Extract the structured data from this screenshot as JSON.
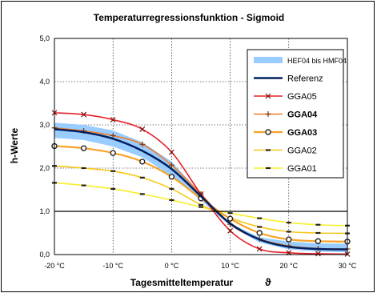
{
  "chart_data": {
    "type": "line",
    "title": "Temperaturregressionsfunktion - Sigmoid",
    "xlabel": "Tagesmitteltemperatur",
    "xlabel_symbol": "ϑ",
    "ylabel": "h-Werte",
    "xlim": [
      -20,
      30
    ],
    "ylim": [
      0,
      5
    ],
    "grid": true,
    "legend_position": "top-right",
    "x_ticks": [
      -20,
      -10,
      0,
      10,
      20,
      30
    ],
    "x_tick_labels": [
      "-20 °C",
      "-10 °C",
      "0 °C",
      "10 °C",
      "20 °C",
      "30 °C"
    ],
    "y_ticks": [
      0,
      1,
      2,
      3,
      4,
      5
    ],
    "y_tick_labels": [
      "0,0",
      "1,0",
      "2,0",
      "3,0",
      "4,0",
      "5,0"
    ],
    "band": {
      "name": "HEF04 bis HMF04",
      "color": "#99ccff",
      "x": [
        -20,
        -15,
        -10,
        -5,
        0,
        5,
        10,
        15,
        20,
        25,
        30
      ],
      "upper": [
        3.05,
        3.0,
        2.87,
        2.6,
        2.15,
        1.4,
        0.72,
        0.4,
        0.3,
        0.26,
        0.25
      ],
      "lower": [
        2.7,
        2.65,
        2.5,
        2.25,
        1.82,
        1.25,
        0.66,
        0.28,
        0.12,
        0.07,
        0.05
      ]
    },
    "series": [
      {
        "name": "Referenz",
        "color": "#002060",
        "width": 2.5,
        "marker": "none",
        "bold": false,
        "x": [
          -20,
          -15,
          -10,
          -5,
          0,
          5,
          10,
          15,
          20,
          25,
          30
        ],
        "y": [
          2.9,
          2.83,
          2.68,
          2.4,
          1.98,
          1.35,
          0.72,
          0.35,
          0.18,
          0.13,
          0.12
        ]
      },
      {
        "name": "GGA05",
        "color": "#e8202a",
        "width": 1.6,
        "marker": "x",
        "bold": false,
        "x": [
          -20,
          -15,
          -10,
          -5,
          0,
          5,
          10,
          15,
          20,
          25,
          30
        ],
        "y": [
          3.28,
          3.24,
          3.12,
          2.9,
          2.37,
          1.4,
          0.55,
          0.13,
          0.04,
          0.02,
          0.01
        ]
      },
      {
        "name": "GGA04",
        "color": "#f07d2a",
        "width": 1.6,
        "marker": "+",
        "bold": true,
        "x": [
          -20,
          -15,
          -10,
          -5,
          0,
          5,
          10,
          15,
          20,
          25,
          30
        ],
        "y": [
          2.93,
          2.86,
          2.75,
          2.55,
          2.07,
          1.4,
          0.7,
          0.36,
          0.2,
          0.14,
          0.13
        ]
      },
      {
        "name": "GGA03",
        "color": "#f7a228",
        "width": 2.2,
        "marker": "o",
        "bold": true,
        "x": [
          -20,
          -15,
          -10,
          -5,
          0,
          5,
          10,
          15,
          20,
          25,
          30
        ],
        "y": [
          2.51,
          2.46,
          2.35,
          2.15,
          1.8,
          1.3,
          0.83,
          0.5,
          0.35,
          0.31,
          0.3
        ]
      },
      {
        "name": "GGA02",
        "color": "#f5c81a",
        "width": 1.6,
        "marker": "-",
        "bold": false,
        "x": [
          -20,
          -15,
          -10,
          -5,
          0,
          5,
          10,
          15,
          20,
          25,
          30
        ],
        "y": [
          2.05,
          2.0,
          1.93,
          1.78,
          1.52,
          1.15,
          0.85,
          0.64,
          0.53,
          0.5,
          0.49
        ]
      },
      {
        "name": "GGA01",
        "color": "#f7ef2c",
        "width": 1.6,
        "marker": "-",
        "bold": false,
        "x": [
          -20,
          -15,
          -10,
          -5,
          0,
          5,
          10,
          15,
          20,
          25,
          30
        ],
        "y": [
          1.66,
          1.6,
          1.52,
          1.4,
          1.26,
          1.1,
          0.96,
          0.84,
          0.74,
          0.69,
          0.67
        ],
        "marker_color": "#222222"
      }
    ]
  }
}
